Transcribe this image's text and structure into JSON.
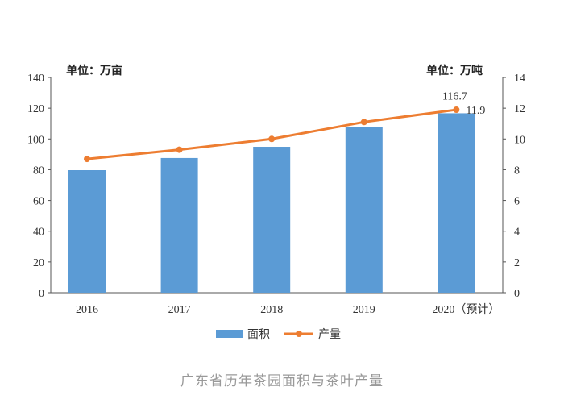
{
  "chart_data": {
    "type": "bar+line",
    "categories": [
      "2016",
      "2017",
      "2018",
      "2019",
      "2020（预计）"
    ],
    "series": [
      {
        "name": "面积",
        "type": "bar",
        "axis": "left",
        "color": "#5b9bd5",
        "values": [
          79.7,
          87.6,
          94.9,
          108.0,
          116.7
        ]
      },
      {
        "name": "产量",
        "type": "line",
        "axis": "right",
        "color": "#ed7d31",
        "values": [
          8.7,
          9.3,
          10.0,
          11.1,
          11.9
        ]
      }
    ],
    "left_unit": "单位：万亩",
    "right_unit": "单位：万吨",
    "ylim_left": [
      0,
      140
    ],
    "yticks_left": [
      "0",
      "20",
      "40",
      "60",
      "80",
      "100",
      "120",
      "140"
    ],
    "ylim_right": [
      0,
      14
    ],
    "yticks_right": [
      "0",
      "2",
      "4",
      "6",
      "8",
      "10",
      "12",
      "14"
    ],
    "data_labels": {
      "bar_last": "116.7",
      "line_last": "11.9"
    },
    "legend_placement": "bottom",
    "grid": false
  },
  "caption": "广东省历年茶园面积与茶叶产量"
}
